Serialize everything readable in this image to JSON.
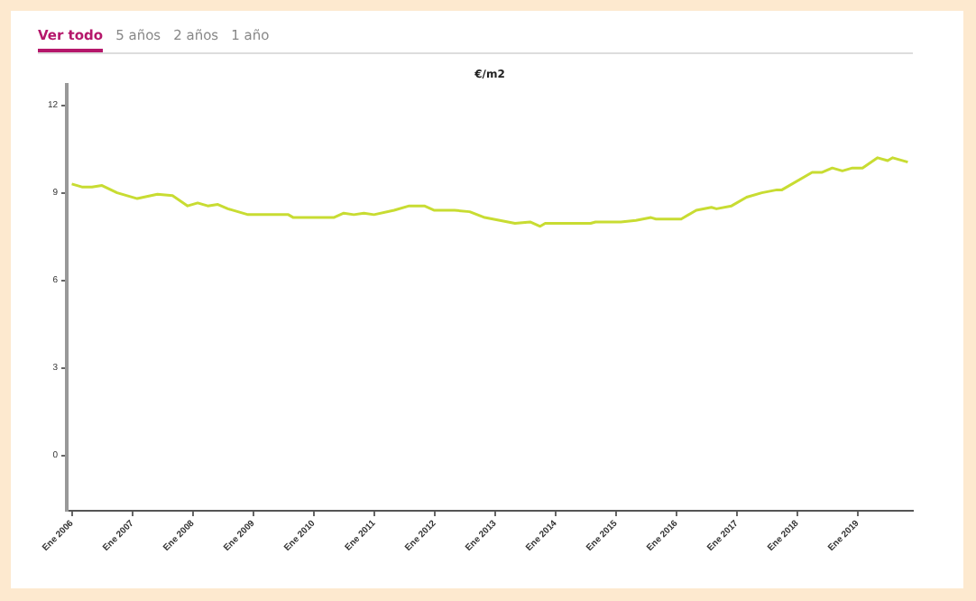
{
  "chart_data": {
    "type": "line",
    "title": "€/m2",
    "annotations": [
      "Ver todo",
      "5 años",
      "2 años",
      "1 año"
    ],
    "x": [
      "2006-01",
      "2006-03",
      "2006-05",
      "2006-07",
      "2006-10",
      "2007-02",
      "2007-06",
      "2007-09",
      "2007-12",
      "2008-02",
      "2008-04",
      "2008-06",
      "2008-08",
      "2008-12",
      "2009-08",
      "2009-09",
      "2010-05",
      "2010-07",
      "2010-09",
      "2010-11",
      "2011-01",
      "2011-05",
      "2011-08",
      "2011-11",
      "2012-01",
      "2012-05",
      "2012-08",
      "2012-11",
      "2013-02",
      "2013-05",
      "2013-08",
      "2013-10",
      "2013-11",
      "2014-08",
      "2014-09",
      "2015-02",
      "2015-05",
      "2015-08",
      "2015-09",
      "2016-02",
      "2016-05",
      "2016-08",
      "2016-09",
      "2016-12",
      "2017-03",
      "2017-06",
      "2017-09",
      "2017-10",
      "2018-04",
      "2018-06",
      "2018-08",
      "2018-10",
      "2018-12",
      "2019-02",
      "2019-05",
      "2019-07",
      "2019-08",
      "2019-11"
    ],
    "series": [
      {
        "color": "#c8dc32",
        "values": [
          9.3,
          9.2,
          9.2,
          9.25,
          9.0,
          8.8,
          8.95,
          8.9,
          8.55,
          8.65,
          8.55,
          8.6,
          8.45,
          8.25,
          8.25,
          8.15,
          8.15,
          8.3,
          8.25,
          8.3,
          8.25,
          8.4,
          8.55,
          8.55,
          8.4,
          8.4,
          8.35,
          8.15,
          8.05,
          7.95,
          8.0,
          7.85,
          7.95,
          7.95,
          8.0,
          8.0,
          8.05,
          8.15,
          8.1,
          8.1,
          8.4,
          8.5,
          8.45,
          8.55,
          8.85,
          9.0,
          9.1,
          9.1,
          9.7,
          9.7,
          9.85,
          9.75,
          9.85,
          9.85,
          10.2,
          10.1,
          10.2,
          10.05
        ]
      }
    ],
    "xlim": [
      "2005-12",
      "2019-12"
    ],
    "xticks": [
      {
        "value": "2006-01",
        "label": "Ene 2006"
      },
      {
        "value": "2007-01",
        "label": "Ene 2007"
      },
      {
        "value": "2008-01",
        "label": "Ene 2008"
      },
      {
        "value": "2009-01",
        "label": "Ene 2009"
      },
      {
        "value": "2010-01",
        "label": "Ene 2010"
      },
      {
        "value": "2011-01",
        "label": "Ene 2011"
      },
      {
        "value": "2012-01",
        "label": "Ene 2012"
      },
      {
        "value": "2013-01",
        "label": "Ene 2013"
      },
      {
        "value": "2014-01",
        "label": "Ene 2014"
      },
      {
        "value": "2015-01",
        "label": "Ene 2015"
      },
      {
        "value": "2016-01",
        "label": "Ene 2016"
      },
      {
        "value": "2017-01",
        "label": "Ene 2017"
      },
      {
        "value": "2018-01",
        "label": "Ene 2018"
      },
      {
        "value": "2019-01",
        "label": "Ene 2019"
      }
    ],
    "ylim": [
      -1.9,
      12.7
    ],
    "yticks": [
      0,
      3,
      6,
      9,
      12
    ],
    "grid": false,
    "legend": false,
    "marker": "none",
    "line_style": "solid"
  }
}
